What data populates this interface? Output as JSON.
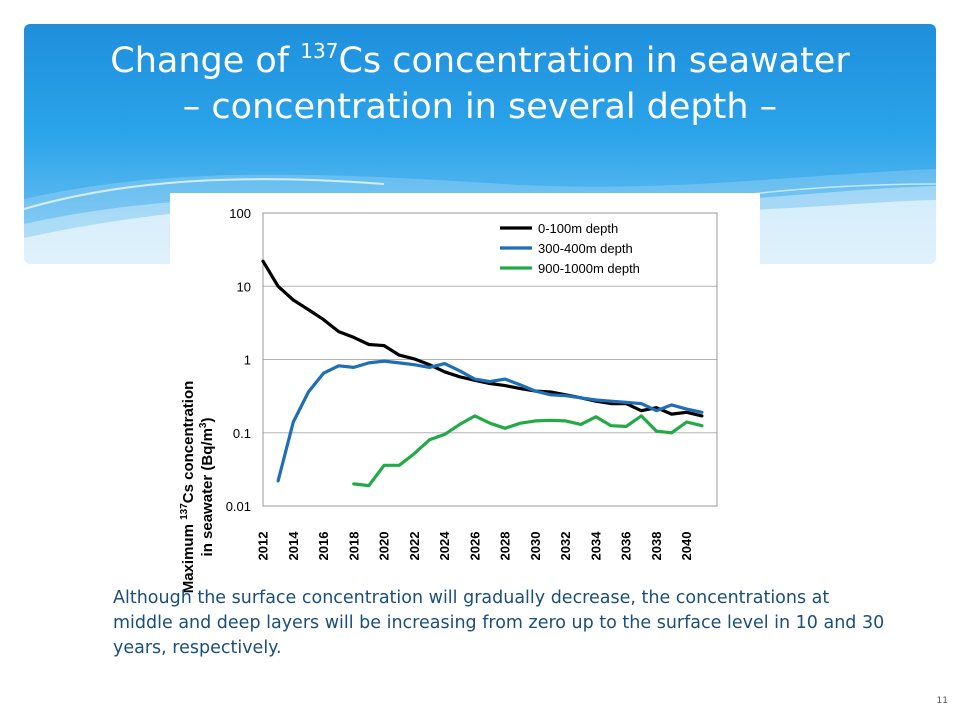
{
  "slide": {
    "title_part1": "Change of ",
    "title_isotope_mass": "137",
    "title_part2": "Cs concentration in seawater",
    "title_line2": "– concentration in several depth –",
    "caption": "Although the surface concentration will gradually decrease, the concentrations at middle and deep layers will be increasing from zero up to the surface level in 10 and 30 years, respectively.",
    "page_number": "11"
  },
  "colors": {
    "title_gradient_top": "#1f8fdc",
    "title_gradient_bottom": "#7cc8f2",
    "caption_text": "#1a4f7a"
  },
  "chart_data": {
    "type": "line",
    "ylabel_line1": "Maximum ",
    "ylabel_sup": "137",
    "ylabel_line1_end": "Cs concentration",
    "ylabel_line2_start": "in seawater (Bq/m",
    "ylabel_sup2": "3",
    "ylabel_line2_end": ")",
    "xlabel": "",
    "yscale": "log",
    "ylim": [
      0.01,
      100
    ],
    "xlim": [
      2012,
      2042
    ],
    "y_ticks": [
      "0.01",
      "0.1",
      "1",
      "10",
      "100"
    ],
    "x_ticks": [
      2012,
      2014,
      2016,
      2018,
      2020,
      2022,
      2024,
      2026,
      2028,
      2030,
      2032,
      2034,
      2036,
      2038,
      2040
    ],
    "grid": "horizontal",
    "legend_position": "top-right",
    "series": [
      {
        "name": "0-100m depth",
        "color": "#000000",
        "x": [
          2012,
          2013,
          2014,
          2015,
          2016,
          2017,
          2018,
          2019,
          2020,
          2021,
          2022,
          2023,
          2024,
          2025,
          2026,
          2027,
          2028,
          2029,
          2030,
          2031,
          2032,
          2033,
          2034,
          2035,
          2036,
          2037,
          2038,
          2039,
          2040,
          2041
        ],
        "y": [
          22,
          10,
          6.5,
          4.8,
          3.5,
          2.4,
          2.0,
          1.6,
          1.55,
          1.15,
          1.02,
          0.85,
          0.68,
          0.58,
          0.52,
          0.47,
          0.44,
          0.4,
          0.37,
          0.36,
          0.33,
          0.3,
          0.27,
          0.25,
          0.25,
          0.2,
          0.22,
          0.18,
          0.19,
          0.17
        ]
      },
      {
        "name": "300-400m depth",
        "color": "#1e6eb8",
        "x": [
          2013,
          2014,
          2015,
          2016,
          2017,
          2018,
          2019,
          2020,
          2021,
          2022,
          2023,
          2024,
          2025,
          2026,
          2027,
          2028,
          2029,
          2030,
          2031,
          2032,
          2033,
          2034,
          2035,
          2036,
          2037,
          2038,
          2039,
          2040,
          2041
        ],
        "y": [
          0.022,
          0.14,
          0.36,
          0.65,
          0.82,
          0.78,
          0.9,
          0.95,
          0.9,
          0.85,
          0.78,
          0.88,
          0.7,
          0.54,
          0.5,
          0.54,
          0.45,
          0.37,
          0.33,
          0.32,
          0.3,
          0.28,
          0.27,
          0.26,
          0.25,
          0.2,
          0.24,
          0.21,
          0.19
        ]
      },
      {
        "name": "900-1000m depth",
        "color": "#22aa44",
        "x": [
          2018,
          2019,
          2020,
          2021,
          2022,
          2023,
          2024,
          2025,
          2026,
          2027,
          2028,
          2029,
          2030,
          2031,
          2032,
          2033,
          2034,
          2035,
          2036,
          2037,
          2038,
          2039,
          2040,
          2041
        ],
        "y": [
          0.02,
          0.019,
          0.036,
          0.036,
          0.052,
          0.08,
          0.095,
          0.13,
          0.17,
          0.135,
          0.115,
          0.135,
          0.145,
          0.148,
          0.145,
          0.13,
          0.165,
          0.125,
          0.122,
          0.17,
          0.105,
          0.1,
          0.14,
          0.125
        ]
      }
    ]
  }
}
